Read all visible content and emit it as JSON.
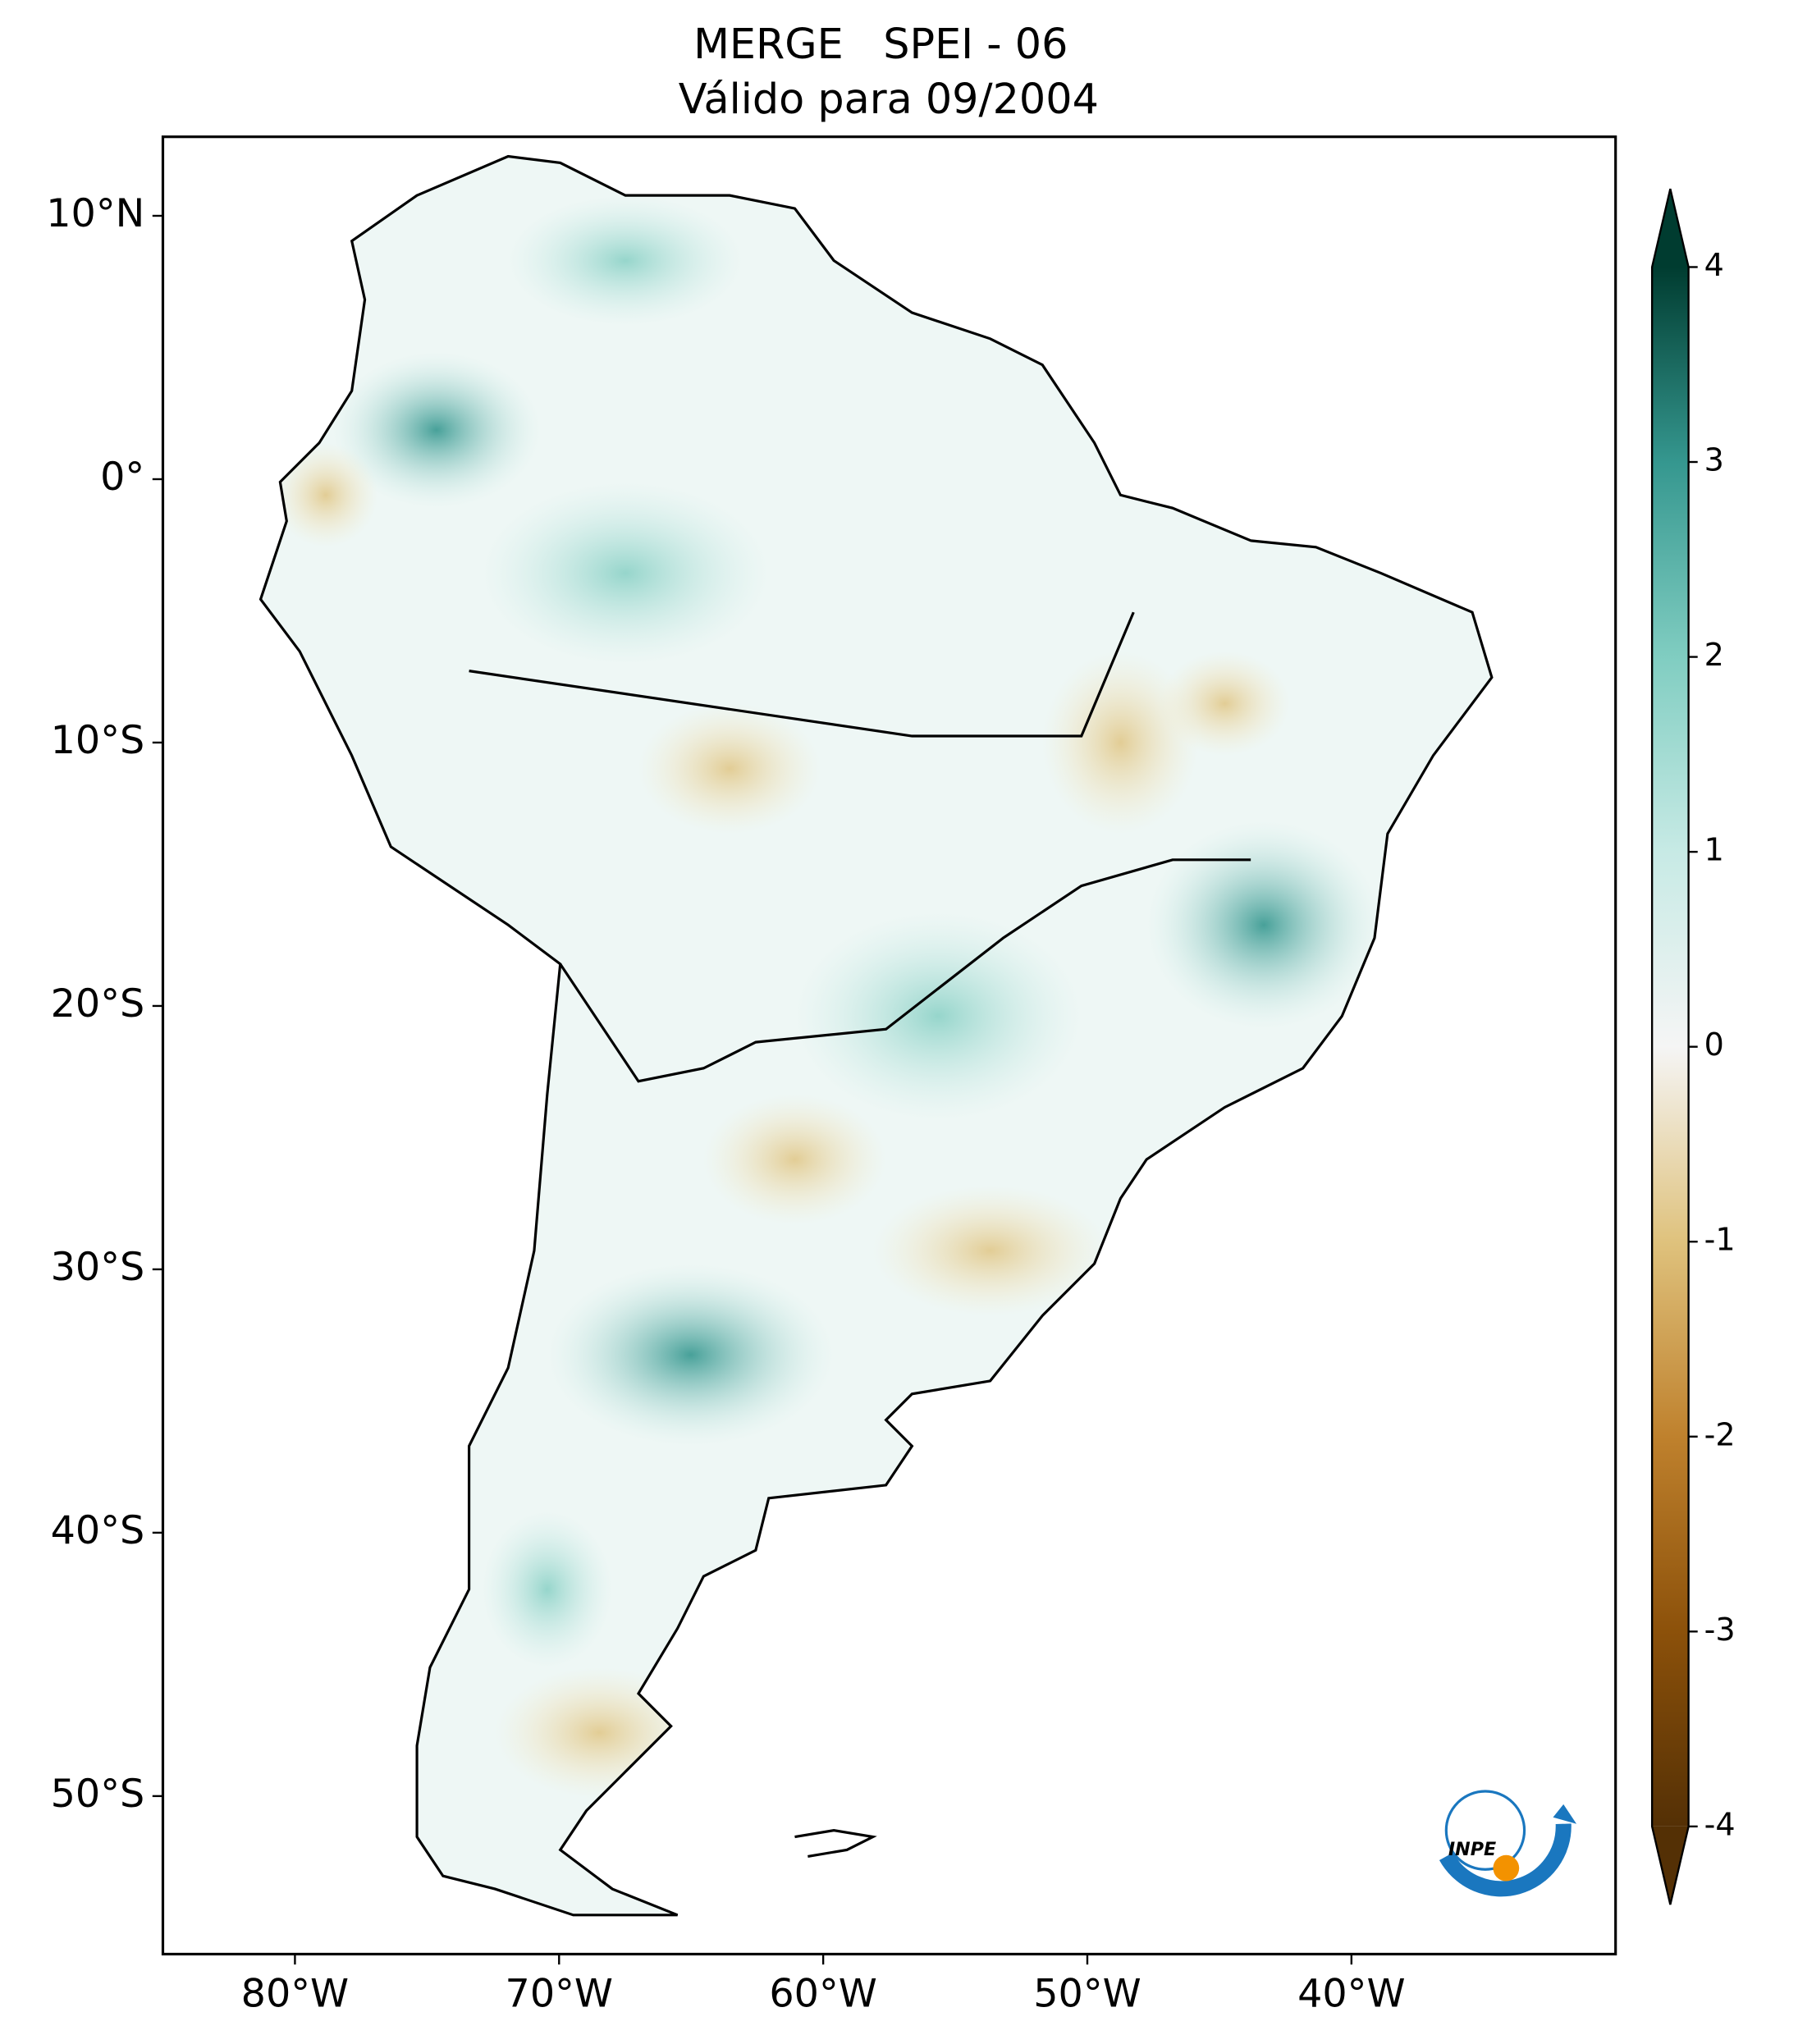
{
  "chart_data": {
    "type": "map",
    "title": "MERGE   SPEI - 06",
    "subtitle": "Válido para 09/2004",
    "xlim": [
      -85,
      -30
    ],
    "ylim": [
      -56,
      13
    ],
    "xticks": [
      {
        "value": -80,
        "label": "80°W"
      },
      {
        "value": -70,
        "label": "70°W"
      },
      {
        "value": -60,
        "label": "60°W"
      },
      {
        "value": -50,
        "label": "50°W"
      },
      {
        "value": -40,
        "label": "40°W"
      }
    ],
    "yticks": [
      {
        "value": 10,
        "label": "10°N"
      },
      {
        "value": 0,
        "label": "0°"
      },
      {
        "value": -10,
        "label": "10°S"
      },
      {
        "value": -20,
        "label": "20°S"
      },
      {
        "value": -30,
        "label": "30°S"
      },
      {
        "value": -40,
        "label": "40°S"
      },
      {
        "value": -50,
        "label": "50°S"
      }
    ],
    "colorbar": {
      "lim": [
        -4,
        4
      ],
      "ticks": [
        4,
        3,
        2,
        1,
        0,
        -1,
        -2,
        -3,
        -4
      ],
      "colors": [
        "#543005",
        "#8c510a",
        "#bf812d",
        "#dfc27d",
        "#f5f5f5",
        "#c7eae5",
        "#80cdc1",
        "#35978f",
        "#003c30"
      ]
    }
  },
  "logo": "INPE"
}
